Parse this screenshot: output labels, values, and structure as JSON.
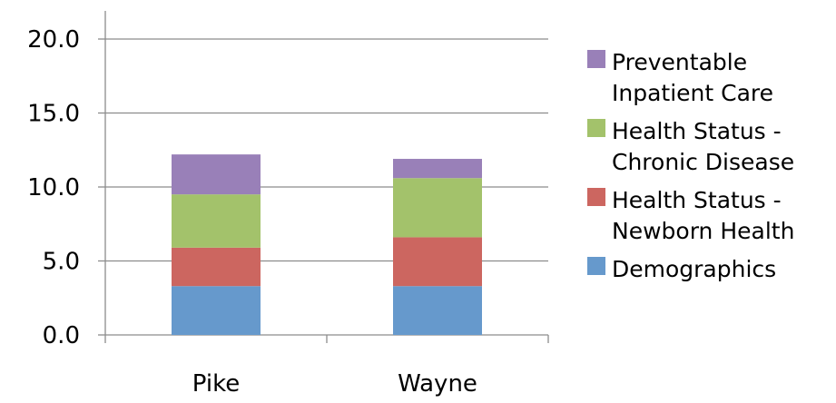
{
  "chart_data": {
    "type": "bar",
    "stacked": true,
    "categories": [
      "Pike",
      "Wayne"
    ],
    "series": [
      {
        "name": "Demographics",
        "color": "#6699cc",
        "values": [
          3.3,
          3.3
        ]
      },
      {
        "name": "Health Status - Newborn Health",
        "color": "#cc6660",
        "values": [
          2.6,
          3.3
        ]
      },
      {
        "name": "Health Status - Chronic Disease",
        "color": "#a3c26b",
        "values": [
          3.6,
          4.0
        ]
      },
      {
        "name": "Preventable Inpatient Care",
        "color": "#9980b8",
        "values": [
          2.7,
          1.3
        ]
      }
    ],
    "yticks": [
      "0.0",
      "5.0",
      "10.0",
      "15.0",
      "20.0"
    ],
    "ylim": [
      0,
      20
    ],
    "grid": true,
    "legend_position": "right"
  },
  "legend": {
    "items": [
      {
        "label": "Preventable Inpatient Care",
        "color": "#9980b8"
      },
      {
        "label": "Health Status - Chronic Disease",
        "color": "#a3c26b"
      },
      {
        "label": "Health Status - Newborn Health",
        "color": "#cc6660"
      },
      {
        "label": "Demographics",
        "color": "#6699cc"
      }
    ]
  }
}
